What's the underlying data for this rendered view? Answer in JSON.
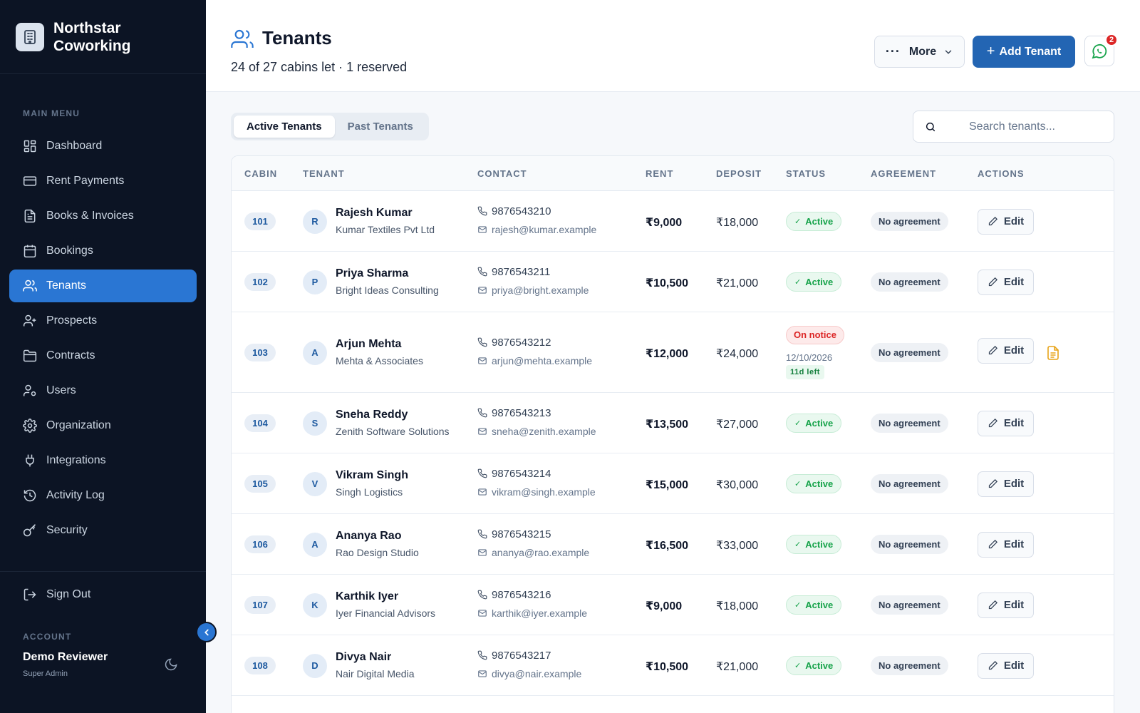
{
  "brand": {
    "name_line1": "Northstar",
    "name_line2": "Coworking"
  },
  "sidebar": {
    "menu_label": "MAIN MENU",
    "items": [
      {
        "label": "Dashboard",
        "icon": "dashboard-icon"
      },
      {
        "label": "Rent Payments",
        "icon": "credit-card-icon"
      },
      {
        "label": "Books & Invoices",
        "icon": "file-text-icon"
      },
      {
        "label": "Bookings",
        "icon": "calendar-icon"
      },
      {
        "label": "Tenants",
        "icon": "users-icon",
        "active": true
      },
      {
        "label": "Prospects",
        "icon": "user-plus-icon"
      },
      {
        "label": "Contracts",
        "icon": "folder-icon"
      },
      {
        "label": "Users",
        "icon": "user-cog-icon"
      },
      {
        "label": "Organization",
        "icon": "gear-icon"
      },
      {
        "label": "Integrations",
        "icon": "plug-icon"
      },
      {
        "label": "Activity Log",
        "icon": "history-icon"
      },
      {
        "label": "Security",
        "icon": "key-icon"
      }
    ],
    "sign_out": "Sign Out",
    "account_label": "ACCOUNT",
    "account_name": "Demo Reviewer",
    "account_role": "Super Admin"
  },
  "header": {
    "title": "Tenants",
    "subtitle": "24 of 27 cabins let · 1 reserved",
    "more_label": "More",
    "add_label": "Add Tenant",
    "whatsapp_badge": "2"
  },
  "tabs": [
    {
      "label": "Active Tenants",
      "active": true
    },
    {
      "label": "Past Tenants",
      "active": false
    }
  ],
  "search": {
    "placeholder": "Search tenants..."
  },
  "table": {
    "columns": {
      "cabin": "CABIN",
      "tenant": "TENANT",
      "contact": "CONTACT",
      "rent": "RENT",
      "deposit": "DEPOSIT",
      "status": "STATUS",
      "agreement": "AGREEMENT",
      "actions": "ACTIONS"
    },
    "edit_label": "Edit",
    "rows": [
      {
        "cabin": "101",
        "initial": "R",
        "name": "Rajesh Kumar",
        "company": "Kumar Textiles Pvt Ltd",
        "phone": "9876543210",
        "email": "rajesh@kumar.example",
        "rent": "₹9,000",
        "deposit": "₹18,000",
        "status": "Active",
        "agreement": "No agreement"
      },
      {
        "cabin": "102",
        "initial": "P",
        "name": "Priya Sharma",
        "company": "Bright Ideas Consulting",
        "phone": "9876543211",
        "email": "priya@bright.example",
        "rent": "₹10,500",
        "deposit": "₹21,000",
        "status": "Active",
        "agreement": "No agreement"
      },
      {
        "cabin": "103",
        "initial": "A",
        "name": "Arjun Mehta",
        "company": "Mehta & Associates",
        "phone": "9876543212",
        "email": "arjun@mehta.example",
        "rent": "₹12,000",
        "deposit": "₹24,000",
        "status": "On notice",
        "notice_date": "12/10/2026",
        "notice_left": "11d left",
        "agreement": "No agreement"
      },
      {
        "cabin": "104",
        "initial": "S",
        "name": "Sneha Reddy",
        "company": "Zenith Software Solutions",
        "phone": "9876543213",
        "email": "sneha@zenith.example",
        "rent": "₹13,500",
        "deposit": "₹27,000",
        "status": "Active",
        "agreement": "No agreement"
      },
      {
        "cabin": "105",
        "initial": "V",
        "name": "Vikram Singh",
        "company": "Singh Logistics",
        "phone": "9876543214",
        "email": "vikram@singh.example",
        "rent": "₹15,000",
        "deposit": "₹30,000",
        "status": "Active",
        "agreement": "No agreement"
      },
      {
        "cabin": "106",
        "initial": "A",
        "name": "Ananya Rao",
        "company": "Rao Design Studio",
        "phone": "9876543215",
        "email": "ananya@rao.example",
        "rent": "₹16,500",
        "deposit": "₹33,000",
        "status": "Active",
        "agreement": "No agreement"
      },
      {
        "cabin": "107",
        "initial": "K",
        "name": "Karthik Iyer",
        "company": "Iyer Financial Advisors",
        "phone": "9876543216",
        "email": "karthik@iyer.example",
        "rent": "₹9,000",
        "deposit": "₹18,000",
        "status": "Active",
        "agreement": "No agreement"
      },
      {
        "cabin": "108",
        "initial": "D",
        "name": "Divya Nair",
        "company": "Nair Digital Media",
        "phone": "9876543217",
        "email": "divya@nair.example",
        "rent": "₹10,500",
        "deposit": "₹21,000",
        "status": "Active",
        "agreement": "No agreement"
      }
    ]
  },
  "colors": {
    "sidebar_bg": "#0c1424",
    "accent": "#2a76d3",
    "primary_button": "#2365b3",
    "active_green": "#16a34a",
    "notice_red": "#dc2626"
  }
}
